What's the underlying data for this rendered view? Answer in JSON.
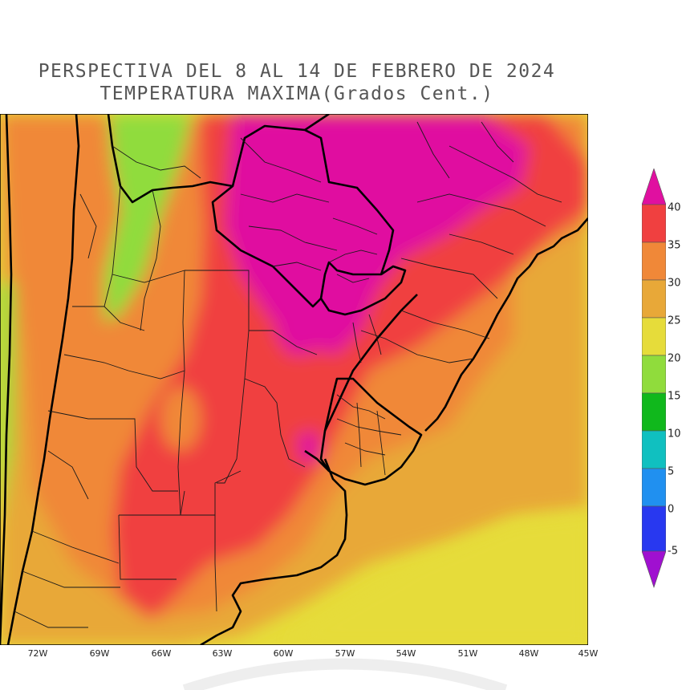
{
  "title": {
    "line1": "PERSPECTIVA DEL 8 AL 14 DE FEBRERO DE 2024",
    "line2": "TEMPERATURA MAXIMA(Grados Cent.)"
  },
  "map": {
    "region": "South America - Southern Cone",
    "longitude_labels": [
      "72W",
      "69W",
      "66W",
      "63W",
      "60W",
      "57W",
      "54W",
      "51W",
      "48W",
      "45W"
    ]
  },
  "colorbar": {
    "labels": [
      "40",
      "35",
      "30",
      "25",
      "20",
      "15",
      "10",
      "5",
      "0",
      "-5"
    ],
    "colors": {
      "above_40": "#e010a0",
      "35_40": "#f04040",
      "30_35": "#f08838",
      "25_30": "#e8a838",
      "20_25": "#e6dc3a",
      "15_20": "#90dc3c",
      "10_15": "#10b81c",
      "5_10": "#10c0c0",
      "0_5": "#2090f0",
      "m5_0": "#2838f0",
      "below_m5": "#a010d0"
    }
  }
}
